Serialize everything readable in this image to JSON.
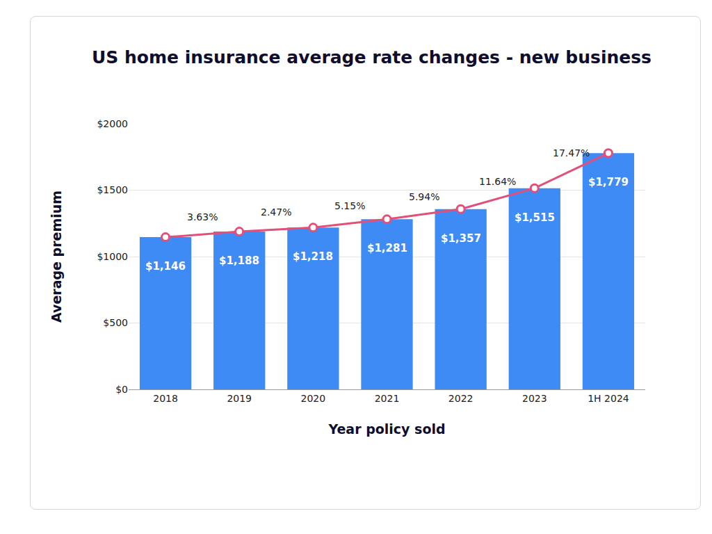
{
  "chart_data": {
    "type": "bar",
    "title": "US home insurance average rate changes - new business",
    "x_label": "Year policy sold",
    "y_label": "Average premium",
    "categories": [
      "2018",
      "2019",
      "2020",
      "2021",
      "2022",
      "2023",
      "1H 2024"
    ],
    "series": [
      {
        "type": "bar",
        "color": "#3e8bf5",
        "data_labels": true,
        "values": [
          1146,
          1188,
          1218,
          1281,
          1357,
          1515,
          1779
        ],
        "value_labels": [
          "$1,146",
          "$1,188",
          "$1,218",
          "$1,281",
          "$1,357",
          "$1,515",
          "$1,779"
        ]
      },
      {
        "type": "line",
        "color": "#e2507a",
        "marker": "circle",
        "values": [
          1146,
          1188,
          1218,
          1281,
          1357,
          1515,
          1779
        ]
      }
    ],
    "rate_changes": {
      "values": [
        3.63,
        2.47,
        5.15,
        5.94,
        11.64,
        17.47
      ],
      "value_labels": [
        "3.63%",
        "2.47%",
        "5.15%",
        "5.94%",
        "11.64%",
        "17.47%"
      ]
    },
    "ylim": [
      0,
      2000
    ],
    "yticks": [
      {
        "value": 0,
        "label": "$0"
      },
      {
        "value": 500,
        "label": "$500"
      },
      {
        "value": 1000,
        "label": "$1000"
      },
      {
        "value": 1500,
        "label": "$1500"
      },
      {
        "value": 2000,
        "label": "$2000"
      }
    ],
    "grid": true
  }
}
